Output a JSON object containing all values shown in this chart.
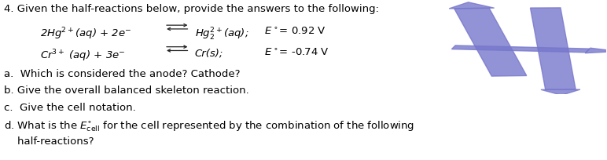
{
  "title_text": "4. Given the half-reactions below, provide the answers to the following:",
  "r1_text": "2Hg$^{2+}$(aq) + 2e$^{-}$",
  "r1_right": "Hg$_2^{2+}$(aq);",
  "r1_E": "$E^{\\circ}$= 0.92 V",
  "r2_text": "Cr$^{3+}$ (aq) + 3e$^{-}$",
  "r2_right": "Cr(s);",
  "r2_E": "$E^{\\circ}$= -0.74 V",
  "qa": "a.  Which is considered the anode? Cathode?",
  "qb": "b. Give the overall balanced skeleton reaction.",
  "qc": "c.  Give the cell notation.",
  "qd1": "d. What is the $E^{\\circ}_{\\mathrm{cell}}$ for the cell represented by the combination of the following",
  "qd2": "    half-reactions?",
  "number_color": "#7777cc",
  "number_color2": "#8888dd",
  "bg_color": "#ffffff",
  "text_color": "#000000",
  "font_size": 9.5
}
